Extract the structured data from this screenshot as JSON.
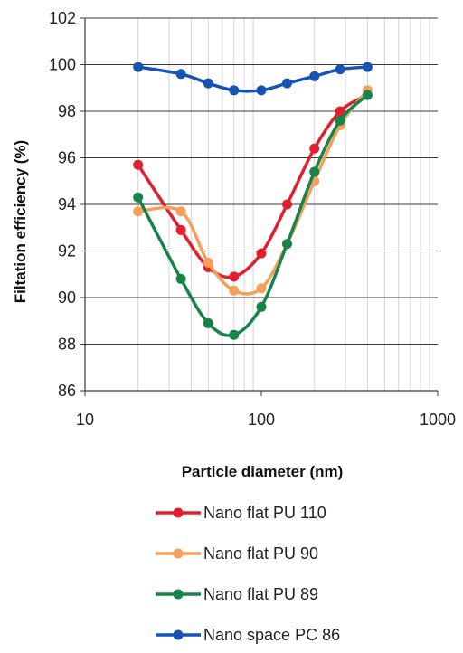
{
  "chart_data": {
    "type": "line",
    "title": "",
    "xlabel": "Particle diameter (nm)",
    "ylabel": "Filtation efficiency (%)",
    "xscale": "log",
    "xlim": [
      10,
      1000
    ],
    "ylim": [
      86,
      102
    ],
    "x_ticks": [
      "10",
      "100",
      "1000"
    ],
    "y_ticks": [
      "86",
      "88",
      "90",
      "92",
      "94",
      "96",
      "98",
      "100",
      "102"
    ],
    "grid": "horizontal major lines, vertical minor lines",
    "legend_position": "bottom",
    "series": [
      {
        "name": "Nano flat PU 110",
        "color": "#e0202e",
        "x": [
          20,
          35,
          50,
          70,
          100,
          140,
          200,
          280,
          400
        ],
        "y": [
          95.7,
          92.9,
          91.3,
          90.9,
          91.9,
          94.0,
          96.4,
          98.0,
          98.7
        ]
      },
      {
        "name": "Nano flat PU 90",
        "color": "#f5a05a",
        "x": [
          20,
          35,
          50,
          70,
          100,
          140,
          200,
          280,
          400
        ],
        "y": [
          93.7,
          93.7,
          91.5,
          90.3,
          90.4,
          92.3,
          95.0,
          97.4,
          98.9
        ]
      },
      {
        "name": "Nano flat PU 89",
        "color": "#16844a",
        "x": [
          20,
          35,
          50,
          70,
          100,
          140,
          200,
          280,
          400
        ],
        "y": [
          94.3,
          90.8,
          88.9,
          88.4,
          89.6,
          92.3,
          95.4,
          97.6,
          98.7
        ]
      },
      {
        "name": "Nano space PC 86",
        "color": "#1654b4",
        "x": [
          20,
          35,
          50,
          70,
          100,
          140,
          200,
          280,
          400
        ],
        "y": [
          99.9,
          99.6,
          99.2,
          98.9,
          98.9,
          99.2,
          99.5,
          99.8,
          99.9
        ]
      }
    ]
  }
}
